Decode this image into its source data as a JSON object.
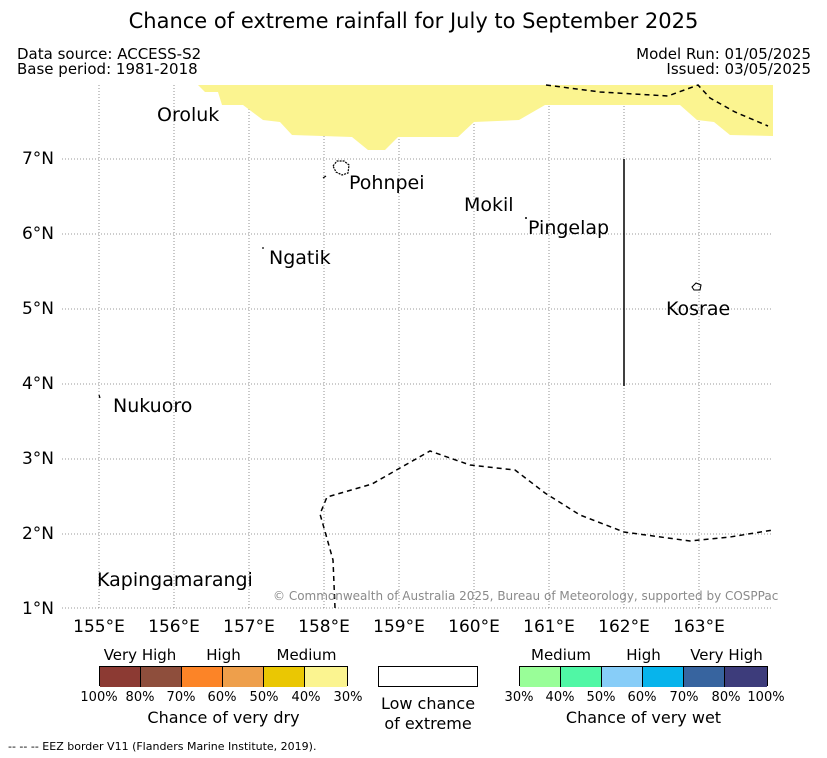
{
  "title": "Chance of extreme rainfall for July to September 2025",
  "header": {
    "data_source": "Data source: ACCESS-S2",
    "base_period": "Base period: 1981-2018",
    "model_run": "Model Run: 01/05/2025",
    "issued": "Issued: 03/05/2025"
  },
  "map": {
    "x_ticks": [
      "155°E",
      "156°E",
      "157°E",
      "158°E",
      "159°E",
      "160°E",
      "161°E",
      "162°E",
      "163°E"
    ],
    "y_ticks": [
      "7°N",
      "6°N",
      "5°N",
      "4°N",
      "3°N",
      "2°N",
      "1°N"
    ],
    "places": {
      "oroluk": "Oroluk",
      "pohnpei": "Pohnpei",
      "mokil": "Mokil",
      "pingelap": "Pingelap",
      "ngatik": "Ngatik",
      "kosrae": "Kosrae",
      "nukuoro": "Nukuoro",
      "kapingamarangi": "Kapingamarangi"
    },
    "copyright": "© Commonwealth of Australia 2025, Bureau of Meteorology, supported by COSPPac",
    "shaded_category": "Medium chance of very dry (30-40%)",
    "shaded_color": "#fbf490"
  },
  "legend": {
    "dry": {
      "levels": [
        "Very High",
        "High",
        "Medium"
      ],
      "colors": [
        "#8c3a33",
        "#8e4e3c",
        "#fc8427",
        "#ee9f4b",
        "#eac703",
        "#fbf490"
      ],
      "ticks": [
        "100%",
        "80%",
        "70%",
        "60%",
        "50%",
        "40%",
        "30%"
      ],
      "title": "Chance of very dry"
    },
    "low": {
      "line1": "Low chance",
      "line2": "of extreme"
    },
    "wet": {
      "levels": [
        "Medium",
        "High",
        "Very High"
      ],
      "colors": [
        "#99fe98",
        "#50f7a5",
        "#87cdf8",
        "#07b4ec",
        "#37649f",
        "#3d3c7b"
      ],
      "ticks": [
        "30%",
        "40%",
        "50%",
        "60%",
        "70%",
        "80%",
        "100%"
      ],
      "title": "Chance of very wet"
    }
  },
  "footnote": "--  --  -- EEZ border V11 (Flanders Marine Institute, 2019)."
}
